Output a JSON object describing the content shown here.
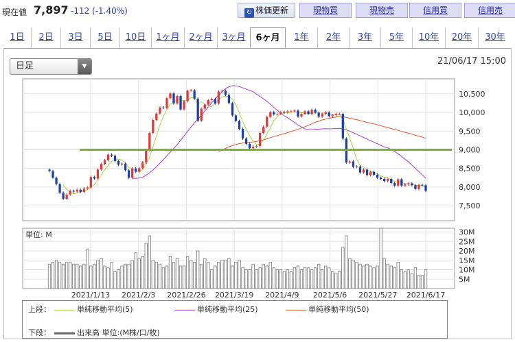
{
  "header": {
    "price_label": "現在値",
    "price": "7,897",
    "change": "-112 (-1.40%)",
    "refresh_label": "株価更新",
    "buttons": [
      "現物買",
      "現物売",
      "信用買",
      "信用売"
    ]
  },
  "tabs": [
    "1日",
    "2日",
    "3日",
    "5日",
    "10日",
    "1ヶ月",
    "2ヶ月",
    "3ヶ月",
    "6ヶ月",
    "1年",
    "2年",
    "3年",
    "5年",
    "10年",
    "20年",
    "30年"
  ],
  "active_tab": "6ヶ月",
  "period_select": "日足",
  "datetime": "21/06/17 15:00",
  "legend": {
    "upper_label": "上段：",
    "lower_label": "下段：",
    "ma5": "単純移動平均(5)",
    "ma25": "単純移動平均(25)",
    "ma50": "単純移動平均(50)",
    "volume": "出来高 単位:(M株/口/枚)"
  },
  "chart_data": {
    "type": "candlestick",
    "x_ticks": [
      "2021/1/13",
      "2021/2/3",
      "2021/2/26",
      "2021/3/19",
      "2021/4/9",
      "2021/5/6",
      "2021/5/27",
      "2021/6/17"
    ],
    "price_ylim": [
      7100,
      10900
    ],
    "price_ticks": [
      7500,
      8000,
      8500,
      9000,
      9500,
      10000,
      10500
    ],
    "price_tick_labels": [
      "7,500",
      "8,000",
      "8,500",
      "9,000",
      "9,500",
      "10,000",
      "10,500"
    ],
    "horizontal_line": 9000,
    "horizontal_line_color": "#7ab030",
    "close": [
      8430,
      8250,
      8080,
      7850,
      7690,
      7800,
      7900,
      7880,
      7930,
      7870,
      7960,
      7990,
      8270,
      8230,
      8470,
      8620,
      8720,
      8870,
      8840,
      8700,
      8600,
      8630,
      8450,
      8250,
      8500,
      8410,
      8510,
      8660,
      8980,
      9450,
      9800,
      9970,
      10130,
      10120,
      10380,
      10510,
      10240,
      10440,
      10080,
      10300,
      10580,
      10590,
      10370,
      9780,
      10100,
      10210,
      10330,
      10360,
      10240,
      10560,
      10580,
      10470,
      10250,
      9920,
      9770,
      9560,
      9300,
      9160,
      9040,
      9080,
      9100,
      9450,
      9620,
      9880,
      10010,
      9950,
      9960,
      10010,
      10000,
      10030,
      10030,
      10050,
      9890,
      9960,
      10030,
      9960,
      10070,
      9990,
      9890,
      9960,
      10000,
      9900,
      9930,
      9960,
      9960,
      9300,
      8660,
      8690,
      8540,
      8550,
      8390,
      8470,
      8320,
      8410,
      8330,
      8250,
      8220,
      8160,
      8220,
      8110,
      8040,
      8210,
      8040,
      8070,
      8100,
      8050,
      7950,
      8060,
      8050,
      7900
    ],
    "ma5": [
      null,
      null,
      null,
      null,
      8060,
      7934,
      7864,
      7824,
      7840,
      7876,
      7908,
      7926,
      8004,
      8064,
      8184,
      8318,
      8462,
      8582,
      8686,
      8752,
      8748,
      8728,
      8644,
      8526,
      8486,
      8448,
      8424,
      8466,
      8612,
      8802,
      9080,
      9372,
      9666,
      9894,
      10080,
      10222,
      10276,
      10340,
      10330,
      10314,
      10328,
      10398,
      10384,
      10224,
      10284,
      10210,
      10158,
      10156,
      10248,
      10342,
      10414,
      10442,
      10420,
      10356,
      10198,
      9994,
      9760,
      9550,
      9374,
      9228,
      9136,
      9166,
      9258,
      9426,
      9592,
      9782,
      9884,
      9962,
      9988,
      9990,
      10002,
      10024,
      10000,
      9992,
      9996,
      9974,
      9982,
      10014,
      9988,
      9974,
      9982,
      9948,
      9936,
      9930,
      9950,
      9810,
      9562,
      9314,
      9040,
      8750,
      8574,
      8530,
      8454,
      8428,
      8384,
      8354,
      8302,
      8272,
      8236,
      8192,
      8152,
      8150,
      8126,
      8096,
      8092,
      8094,
      8042,
      8046,
      8042,
      8002
    ],
    "ma25": [
      null,
      null,
      null,
      null,
      null,
      null,
      null,
      null,
      null,
      null,
      null,
      null,
      null,
      null,
      null,
      null,
      null,
      null,
      null,
      null,
      null,
      null,
      null,
      null,
      8233,
      8232,
      8242,
      8266,
      8317,
      8387,
      8459,
      8546,
      8640,
      8734,
      8836,
      8938,
      9036,
      9138,
      9251,
      9373,
      9488,
      9607,
      9722,
      9823,
      9924,
      10035,
      10148,
      10258,
      10363,
      10460,
      10549,
      10637,
      10688,
      10716,
      10712,
      10694,
      10658,
      10621,
      10590,
      10555,
      10489,
      10427,
      10364,
      10296,
      10220,
      10134,
      10058,
      9980,
      9909,
      9857,
      9793,
      9732,
      9664,
      9607,
      9562,
      9538,
      9540,
      9550,
      9552,
      9560,
      9563,
      9560,
      9564,
      9566,
      9574,
      9565,
      9533,
      9497,
      9457,
      9418,
      9370,
      9331,
      9282,
      9244,
      9200,
      9164,
      9117,
      9074,
      9051,
      9009,
      8953,
      8893,
      8821,
      8749,
      8675,
      8587,
      8503,
      8418,
      8327,
      8237
    ],
    "ma50": [
      null,
      null,
      null,
      null,
      null,
      null,
      null,
      null,
      null,
      null,
      null,
      null,
      null,
      null,
      null,
      null,
      null,
      null,
      null,
      null,
      null,
      null,
      null,
      null,
      null,
      null,
      null,
      null,
      null,
      null,
      null,
      null,
      null,
      null,
      null,
      null,
      null,
      null,
      null,
      null,
      null,
      null,
      null,
      null,
      null,
      null,
      null,
      null,
      null,
      8950,
      8992,
      9039,
      9080,
      9112,
      9140,
      9163,
      9178,
      9190,
      9199,
      9211,
      9222,
      9244,
      9264,
      9294,
      9325,
      9353,
      9380,
      9407,
      9430,
      9460,
      9489,
      9517,
      9545,
      9583,
      9619,
      9658,
      9694,
      9736,
      9764,
      9798,
      9820,
      9844,
      9863,
      9878,
      9890,
      9885,
      9864,
      9847,
      9825,
      9805,
      9782,
      9757,
      9735,
      9715,
      9692,
      9668,
      9642,
      9617,
      9597,
      9568,
      9543,
      9520,
      9491,
      9467,
      9442,
      9418,
      9389,
      9366,
      9340,
      9306
    ],
    "volume_ylim": [
      0,
      32
    ],
    "volume_ticks": [
      5,
      10,
      15,
      20,
      25,
      30
    ],
    "volume_tick_labels": [
      "5M",
      "10M",
      "15M",
      "20M",
      "25M",
      "30M"
    ],
    "volume_unit_label": "単位: M",
    "volume": [
      13,
      14,
      15,
      14,
      13,
      14,
      14,
      13,
      13,
      12,
      13,
      21,
      12,
      13,
      15,
      16,
      12,
      11,
      14,
      9,
      10,
      12,
      13,
      13,
      15,
      19,
      16,
      17,
      24,
      28,
      15,
      14,
      13,
      11,
      12,
      17,
      14,
      16,
      12,
      12,
      17,
      15,
      14,
      20,
      13,
      16,
      14,
      10,
      12,
      14,
      15,
      15,
      16,
      12,
      14,
      15,
      11,
      10,
      10,
      13,
      10,
      11,
      13,
      12,
      14,
      11,
      10,
      10,
      9,
      10,
      9,
      11,
      12,
      10,
      11,
      11,
      10,
      11,
      13,
      10,
      12,
      11,
      9,
      8,
      9,
      22,
      28,
      16,
      15,
      14,
      13,
      12,
      13,
      12,
      11,
      12,
      33,
      16,
      13,
      12,
      11,
      14,
      10,
      9,
      10,
      8,
      11,
      7,
      7,
      10
    ]
  }
}
